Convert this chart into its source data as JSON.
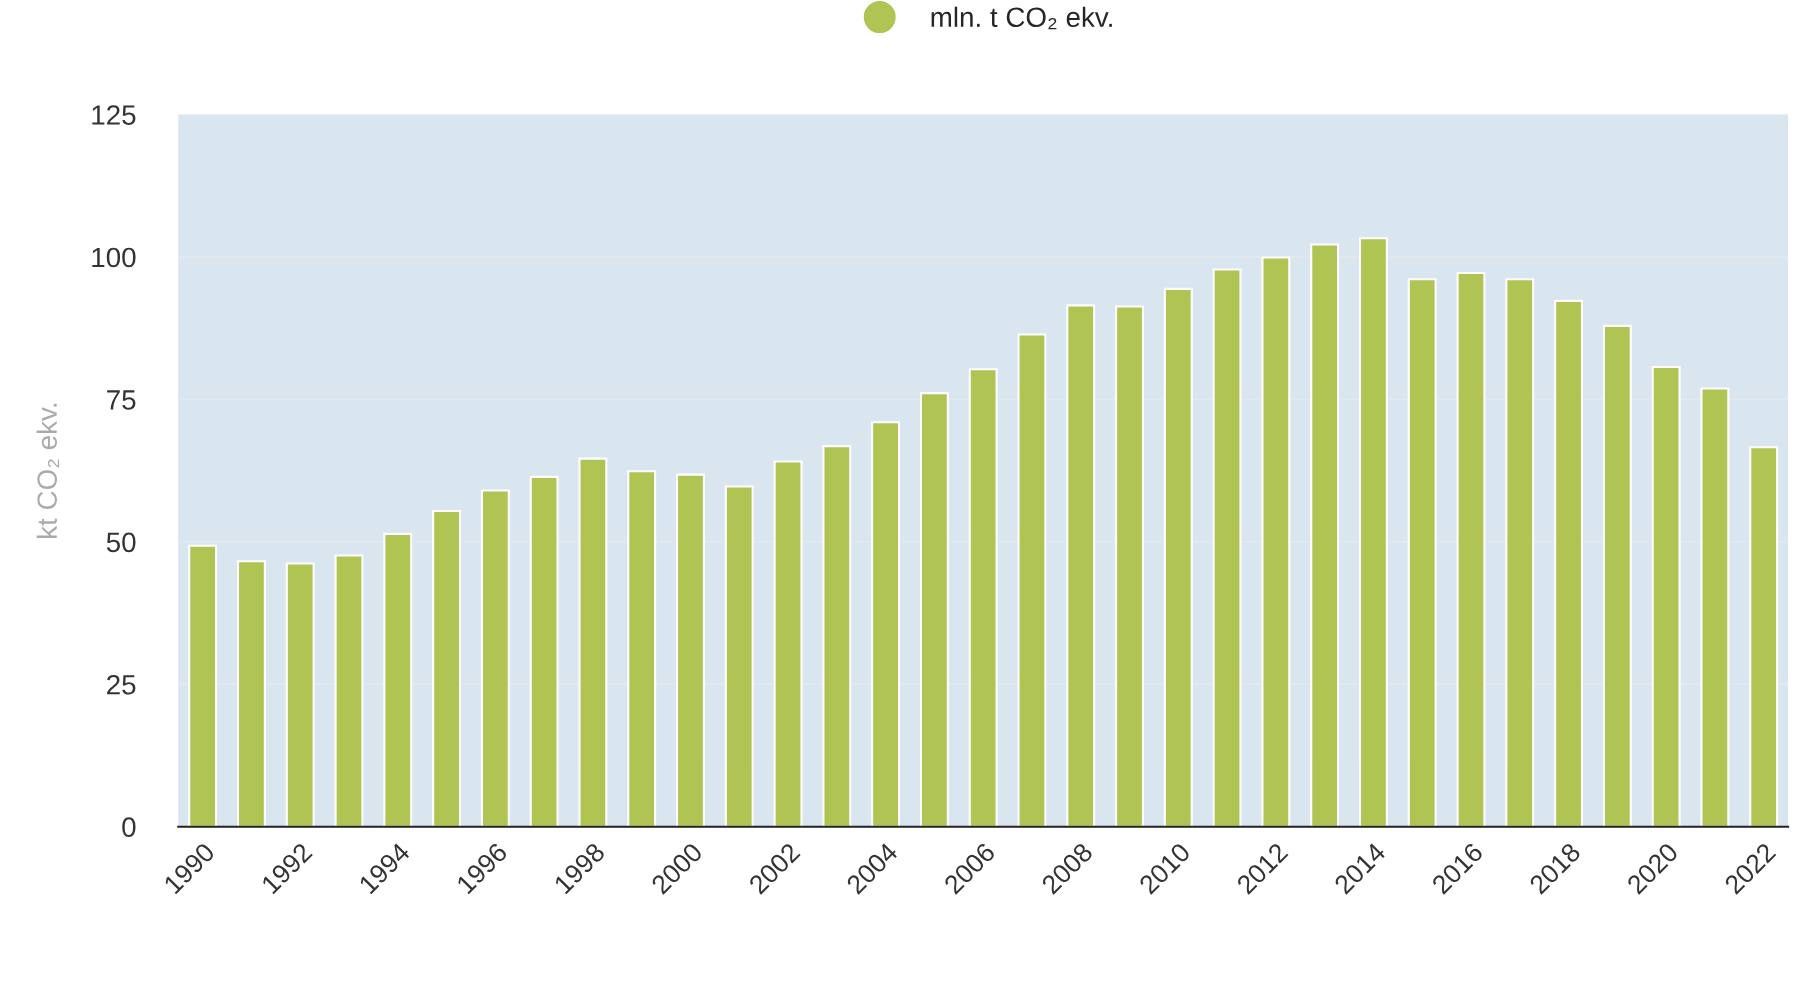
{
  "chart_data": {
    "type": "bar",
    "categories": [
      "1990",
      null,
      "1992",
      null,
      "1994",
      null,
      "1996",
      null,
      "1998",
      null,
      "2000",
      null,
      "2002",
      null,
      "2004",
      null,
      "2006",
      null,
      "2008",
      null,
      "2010",
      null,
      "2012",
      null,
      "2014",
      null,
      "2016",
      null,
      "2018",
      null,
      "2020",
      null,
      "2022"
    ],
    "series": [
      {
        "name": "mln. t CO₂ ekv.",
        "color": "#afc452",
        "values": [
          49.3,
          46.6,
          46.2,
          47.6,
          51.4,
          55.4,
          59.0,
          61.4,
          64.6,
          62.4,
          61.8,
          59.7,
          64.1,
          66.8,
          71.0,
          76.1,
          80.3,
          86.4,
          91.5,
          91.3,
          94.4,
          97.8,
          99.9,
          102.2,
          103.3,
          96.1,
          97.2,
          96.1,
          92.3,
          87.9,
          80.7,
          76.9,
          66.6
        ]
      }
    ],
    "ylabel": "kt CO₂ ekv.",
    "ylim": [
      0,
      125
    ],
    "yticks": [
      0,
      25,
      50,
      75,
      100,
      125
    ],
    "grid": "y",
    "legend": "top"
  }
}
